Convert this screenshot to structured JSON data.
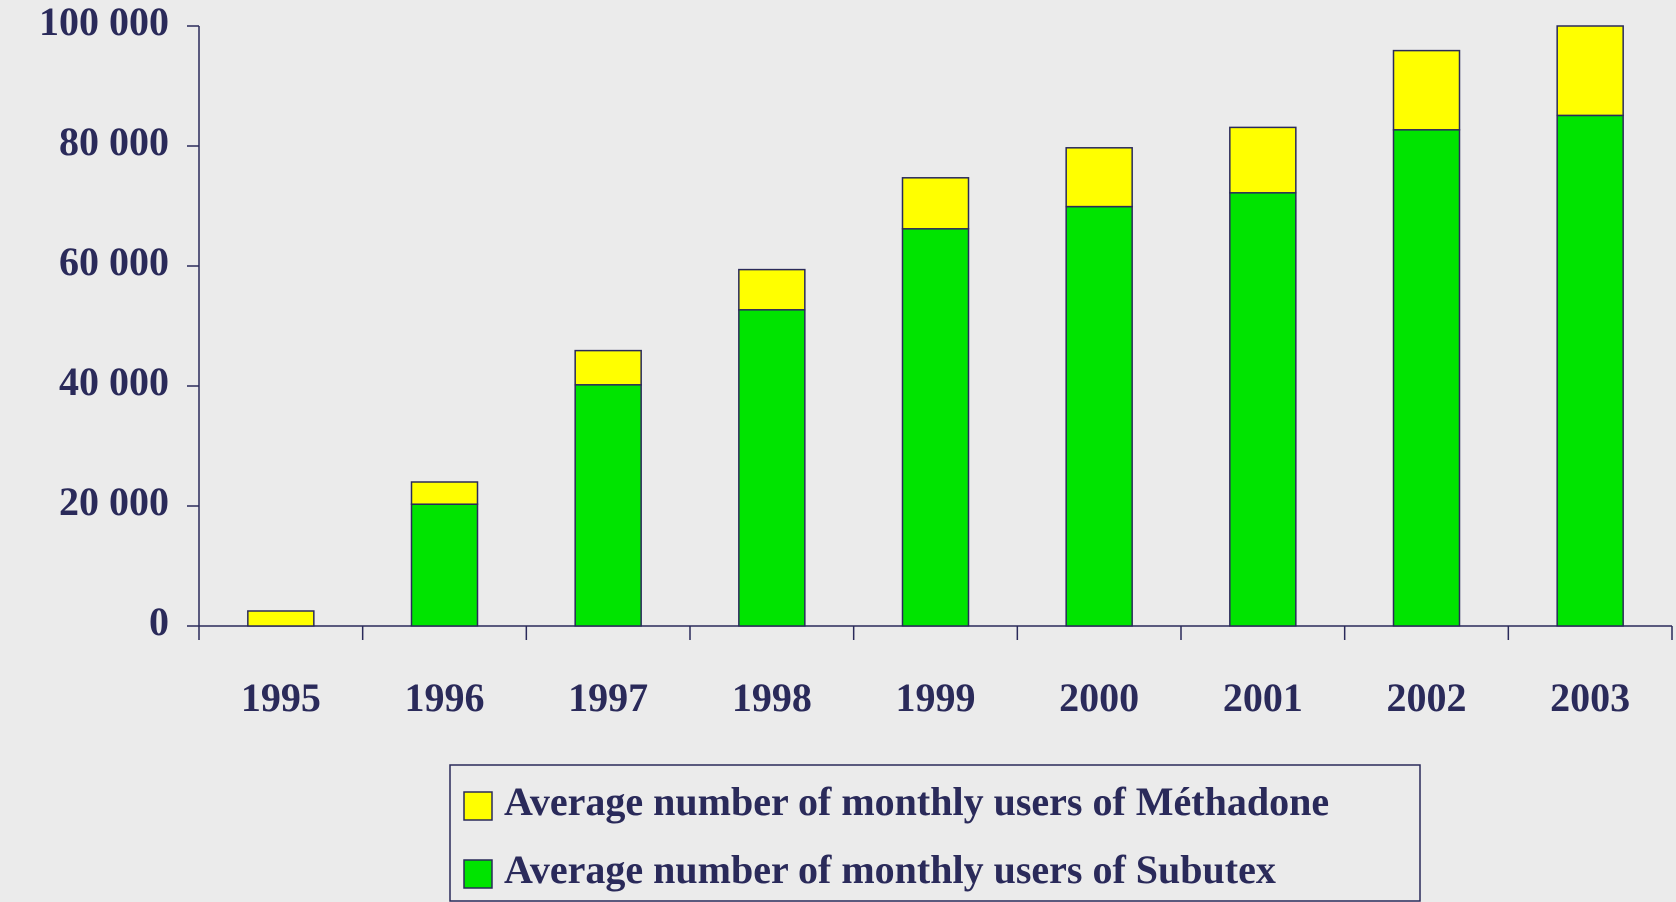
{
  "chart_data": {
    "type": "stacked_bar",
    "categories": [
      "1995",
      "1996",
      "1997",
      "1998",
      "1999",
      "2000",
      "2001",
      "2002",
      "2003"
    ],
    "series": [
      {
        "name": "Average number of monthly users of Méthadone",
        "color": "#ffff00",
        "values": [
          2500,
          3700,
          5700,
          6700,
          8500,
          9800,
          10900,
          13200,
          14900
        ]
      },
      {
        "name": "Average number of monthly users of Subutex",
        "color": "#00e400",
        "values": [
          0,
          20300,
          40200,
          52700,
          66200,
          69900,
          72200,
          82700,
          85100
        ]
      }
    ],
    "ylim": [
      0,
      100000
    ],
    "yticks": [
      0,
      {
        "value": 20000,
        "label": "20 000"
      },
      {
        "value": 40000,
        "label": "40 000"
      },
      {
        "value": 60000,
        "label": "60 000"
      },
      {
        "value": 80000,
        "label": "80 000"
      },
      {
        "value": 100000,
        "label": "100 000"
      }
    ],
    "grid": false
  }
}
